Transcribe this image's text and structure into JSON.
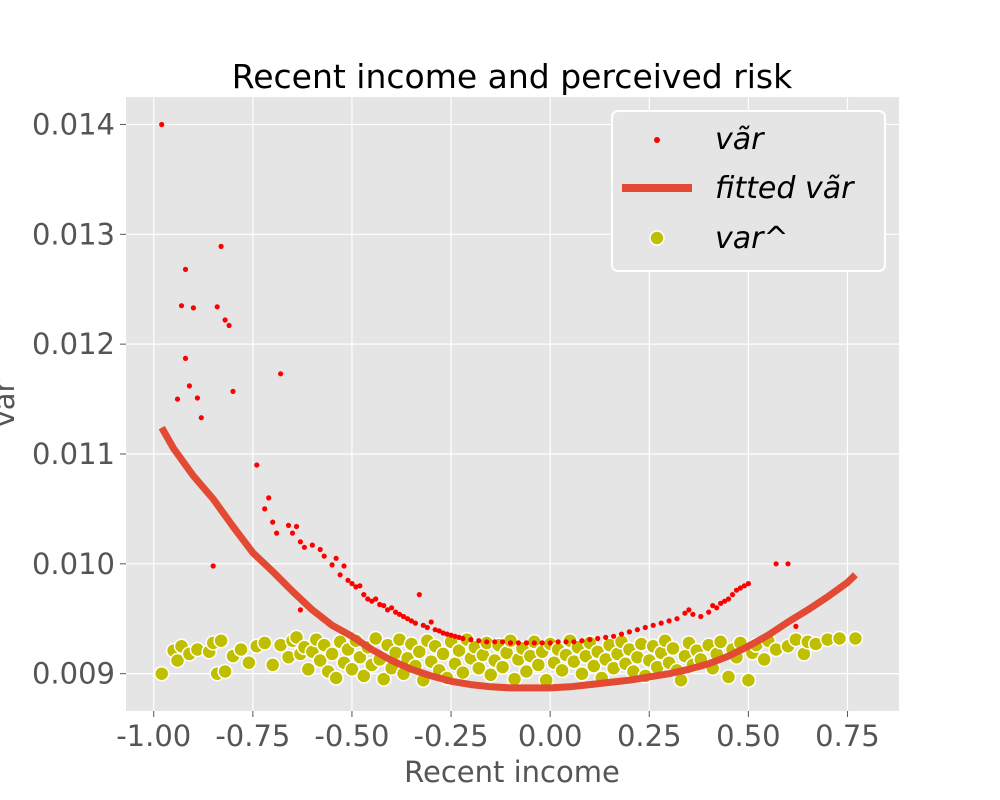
{
  "chart_data": {
    "type": "scatter",
    "title": "Recent income and perceived risk",
    "xlabel": "Recent income",
    "ylabel": "var",
    "xlim": [
      -1.07,
      0.88
    ],
    "ylim": [
      0.00866,
      0.01425
    ],
    "x_ticks": [
      -1.0,
      -0.75,
      -0.5,
      -0.25,
      0.0,
      0.25,
      0.5,
      0.75
    ],
    "x_tick_labels": [
      "-1.00",
      "-0.75",
      "-0.50",
      "-0.25",
      "0.00",
      "0.25",
      "0.50",
      "0.75"
    ],
    "y_ticks": [
      0.009,
      0.01,
      0.011,
      0.012,
      0.013,
      0.014
    ],
    "y_tick_labels": [
      "0.009",
      "0.010",
      "0.011",
      "0.012",
      "0.013",
      "0.014"
    ],
    "grid": true,
    "style": "ggplot",
    "legend_position": "top-right",
    "legend": {
      "entries": [
        {
          "label": "vãr",
          "kind": "marker-small",
          "color": "#ff0000"
        },
        {
          "label": "fitted vãr",
          "kind": "line",
          "color": "#e24a33"
        },
        {
          "label": "var^",
          "kind": "marker-large",
          "color": "#bfbf00"
        }
      ]
    },
    "series": [
      {
        "name": "vãr",
        "kind": "scatter-small",
        "color": "#ff0000",
        "points": [
          [
            -0.98,
            0.014
          ],
          [
            -0.94,
            0.0115
          ],
          [
            -0.93,
            0.01235
          ],
          [
            -0.92,
            0.01268
          ],
          [
            -0.92,
            0.01187
          ],
          [
            -0.91,
            0.01162
          ],
          [
            -0.9,
            0.01233
          ],
          [
            -0.89,
            0.01151
          ],
          [
            -0.88,
            0.01133
          ],
          [
            -0.85,
            0.00998
          ],
          [
            -0.84,
            0.01234
          ],
          [
            -0.83,
            0.01289
          ],
          [
            -0.82,
            0.01222
          ],
          [
            -0.81,
            0.01217
          ],
          [
            -0.8,
            0.01157
          ],
          [
            -0.74,
            0.0109
          ],
          [
            -0.72,
            0.0105
          ],
          [
            -0.71,
            0.0106
          ],
          [
            -0.7,
            0.01038
          ],
          [
            -0.69,
            0.01028
          ],
          [
            -0.68,
            0.01173
          ],
          [
            -0.66,
            0.01035
          ],
          [
            -0.65,
            0.01028
          ],
          [
            -0.64,
            0.01034
          ],
          [
            -0.63,
            0.0102
          ],
          [
            -0.62,
            0.01015
          ],
          [
            -0.6,
            0.01017
          ],
          [
            -0.58,
            0.01013
          ],
          [
            -0.57,
            0.01007
          ],
          [
            -0.55,
            0.00999
          ],
          [
            -0.54,
            0.01005
          ],
          [
            -0.53,
            0.0099
          ],
          [
            -0.52,
            0.00998
          ],
          [
            -0.51,
            0.00985
          ],
          [
            -0.5,
            0.00982
          ],
          [
            -0.49,
            0.00979
          ],
          [
            -0.48,
            0.0098
          ],
          [
            -0.47,
            0.00972
          ],
          [
            -0.46,
            0.00968
          ],
          [
            -0.45,
            0.00966
          ],
          [
            -0.44,
            0.00968
          ],
          [
            -0.43,
            0.00963
          ],
          [
            -0.42,
            0.00962
          ],
          [
            -0.41,
            0.00958
          ],
          [
            -0.4,
            0.0096
          ],
          [
            -0.39,
            0.00956
          ],
          [
            -0.38,
            0.00954
          ],
          [
            -0.37,
            0.00952
          ],
          [
            -0.36,
            0.0095
          ],
          [
            -0.35,
            0.00948
          ],
          [
            -0.34,
            0.00946
          ],
          [
            -0.33,
            0.00972
          ],
          [
            -0.32,
            0.00944
          ],
          [
            -0.31,
            0.00942
          ],
          [
            -0.3,
            0.00947
          ],
          [
            -0.29,
            0.0094
          ],
          [
            -0.28,
            0.00939
          ],
          [
            -0.27,
            0.00937
          ],
          [
            -0.26,
            0.00936
          ],
          [
            -0.25,
            0.00935
          ],
          [
            -0.24,
            0.00934
          ],
          [
            -0.23,
            0.00933
          ],
          [
            -0.22,
            0.00932
          ],
          [
            -0.2,
            0.00931
          ],
          [
            -0.18,
            0.0093
          ],
          [
            -0.16,
            0.00929
          ],
          [
            -0.14,
            0.00929
          ],
          [
            -0.12,
            0.00929
          ],
          [
            -0.1,
            0.00928
          ],
          [
            -0.08,
            0.00928
          ],
          [
            -0.06,
            0.00928
          ],
          [
            -0.04,
            0.00928
          ],
          [
            -0.02,
            0.00928
          ],
          [
            0.0,
            0.00928
          ],
          [
            0.02,
            0.00929
          ],
          [
            0.04,
            0.00929
          ],
          [
            0.06,
            0.00929
          ],
          [
            0.08,
            0.0093
          ],
          [
            0.1,
            0.00931
          ],
          [
            0.12,
            0.00932
          ],
          [
            0.14,
            0.00933
          ],
          [
            0.16,
            0.00934
          ],
          [
            0.18,
            0.00936
          ],
          [
            0.2,
            0.00938
          ],
          [
            0.22,
            0.0094
          ],
          [
            0.24,
            0.00942
          ],
          [
            0.26,
            0.00944
          ],
          [
            0.28,
            0.00946
          ],
          [
            0.3,
            0.00948
          ],
          [
            0.32,
            0.0095
          ],
          [
            0.34,
            0.00955
          ],
          [
            0.35,
            0.00958
          ],
          [
            0.36,
            0.00954
          ],
          [
            0.38,
            0.00952
          ],
          [
            0.4,
            0.00956
          ],
          [
            0.41,
            0.00962
          ],
          [
            0.42,
            0.0096
          ],
          [
            0.43,
            0.00964
          ],
          [
            0.44,
            0.00966
          ],
          [
            0.45,
            0.00968
          ],
          [
            0.46,
            0.00972
          ],
          [
            0.47,
            0.00976
          ],
          [
            0.48,
            0.00978
          ],
          [
            0.49,
            0.0098
          ],
          [
            0.5,
            0.00982
          ],
          [
            0.57,
            0.01
          ],
          [
            0.6,
            0.01
          ],
          [
            0.62,
            0.00943
          ],
          [
            -0.63,
            0.00958
          ]
        ]
      },
      {
        "name": "fitted vãr",
        "kind": "line",
        "color": "#e24a33",
        "points": [
          [
            -0.98,
            0.01124
          ],
          [
            -0.95,
            0.01105
          ],
          [
            -0.9,
            0.0108
          ],
          [
            -0.85,
            0.01059
          ],
          [
            -0.8,
            0.01034
          ],
          [
            -0.75,
            0.0101
          ],
          [
            -0.7,
            0.00993
          ],
          [
            -0.65,
            0.00975
          ],
          [
            -0.6,
            0.00958
          ],
          [
            -0.55,
            0.00944
          ],
          [
            -0.5,
            0.00934
          ],
          [
            -0.45,
            0.00922
          ],
          [
            -0.4,
            0.00912
          ],
          [
            -0.35,
            0.00904
          ],
          [
            -0.3,
            0.00898
          ],
          [
            -0.25,
            0.00893
          ],
          [
            -0.2,
            0.0089
          ],
          [
            -0.15,
            0.00888
          ],
          [
            -0.1,
            0.00887
          ],
          [
            -0.05,
            0.00887
          ],
          [
            0.0,
            0.00887
          ],
          [
            0.05,
            0.00888
          ],
          [
            0.1,
            0.0089
          ],
          [
            0.15,
            0.00892
          ],
          [
            0.2,
            0.00894
          ],
          [
            0.25,
            0.00897
          ],
          [
            0.3,
            0.009
          ],
          [
            0.35,
            0.00904
          ],
          [
            0.4,
            0.00909
          ],
          [
            0.45,
            0.00916
          ],
          [
            0.5,
            0.00925
          ],
          [
            0.55,
            0.00935
          ],
          [
            0.6,
            0.00947
          ],
          [
            0.65,
            0.00958
          ],
          [
            0.7,
            0.0097
          ],
          [
            0.75,
            0.00983
          ],
          [
            0.77,
            0.0099
          ]
        ]
      },
      {
        "name": "var^",
        "kind": "scatter-large",
        "color": "#bfbf00",
        "points": [
          [
            -0.98,
            0.009
          ],
          [
            -0.95,
            0.00921
          ],
          [
            -0.94,
            0.00912
          ],
          [
            -0.93,
            0.00925
          ],
          [
            -0.91,
            0.00918
          ],
          [
            -0.89,
            0.00922
          ],
          [
            -0.86,
            0.0092
          ],
          [
            -0.85,
            0.00928
          ],
          [
            -0.84,
            0.009
          ],
          [
            -0.83,
            0.0093
          ],
          [
            -0.82,
            0.00902
          ],
          [
            -0.8,
            0.00916
          ],
          [
            -0.78,
            0.00922
          ],
          [
            -0.76,
            0.0091
          ],
          [
            -0.74,
            0.00925
          ],
          [
            -0.72,
            0.00928
          ],
          [
            -0.7,
            0.00908
          ],
          [
            -0.68,
            0.00926
          ],
          [
            -0.66,
            0.00915
          ],
          [
            -0.65,
            0.0093
          ],
          [
            -0.64,
            0.00933
          ],
          [
            -0.63,
            0.00918
          ],
          [
            -0.62,
            0.00924
          ],
          [
            -0.61,
            0.00904
          ],
          [
            -0.6,
            0.0092
          ],
          [
            -0.59,
            0.00931
          ],
          [
            -0.58,
            0.00912
          ],
          [
            -0.57,
            0.00926
          ],
          [
            -0.56,
            0.00902
          ],
          [
            -0.55,
            0.00918
          ],
          [
            -0.54,
            0.00896
          ],
          [
            -0.53,
            0.00929
          ],
          [
            -0.52,
            0.0091
          ],
          [
            -0.51,
            0.00922
          ],
          [
            -0.5,
            0.00904
          ],
          [
            -0.49,
            0.0093
          ],
          [
            -0.48,
            0.00915
          ],
          [
            -0.47,
            0.00898
          ],
          [
            -0.46,
            0.00924
          ],
          [
            -0.45,
            0.00908
          ],
          [
            -0.44,
            0.00932
          ],
          [
            -0.43,
            0.00913
          ],
          [
            -0.42,
            0.00895
          ],
          [
            -0.41,
            0.00926
          ],
          [
            -0.4,
            0.00905
          ],
          [
            -0.39,
            0.00919
          ],
          [
            -0.38,
            0.00931
          ],
          [
            -0.37,
            0.009
          ],
          [
            -0.36,
            0.00914
          ],
          [
            -0.35,
            0.00927
          ],
          [
            -0.34,
            0.00907
          ],
          [
            -0.33,
            0.0092
          ],
          [
            -0.32,
            0.00894
          ],
          [
            -0.31,
            0.0093
          ],
          [
            -0.3,
            0.00911
          ],
          [
            -0.29,
            0.00925
          ],
          [
            -0.28,
            0.00903
          ],
          [
            -0.27,
            0.00918
          ],
          [
            -0.26,
            0.00896
          ],
          [
            -0.25,
            0.00929
          ],
          [
            -0.24,
            0.00909
          ],
          [
            -0.23,
            0.00921
          ],
          [
            -0.22,
            0.00901
          ],
          [
            -0.21,
            0.00931
          ],
          [
            -0.2,
            0.00914
          ],
          [
            -0.19,
            0.00924
          ],
          [
            -0.18,
            0.00905
          ],
          [
            -0.17,
            0.00917
          ],
          [
            -0.16,
            0.00928
          ],
          [
            -0.15,
            0.00899
          ],
          [
            -0.14,
            0.00912
          ],
          [
            -0.13,
            0.00926
          ],
          [
            -0.12,
            0.00906
          ],
          [
            -0.11,
            0.00919
          ],
          [
            -0.1,
            0.0093
          ],
          [
            -0.09,
            0.00895
          ],
          [
            -0.08,
            0.00913
          ],
          [
            -0.07,
            0.00923
          ],
          [
            -0.06,
            0.00902
          ],
          [
            -0.05,
            0.00916
          ],
          [
            -0.04,
            0.00929
          ],
          [
            -0.03,
            0.00908
          ],
          [
            -0.02,
            0.0092
          ],
          [
            -0.01,
            0.00894
          ],
          [
            0.0,
            0.00927
          ],
          [
            0.01,
            0.0091
          ],
          [
            0.02,
            0.00922
          ],
          [
            0.03,
            0.00903
          ],
          [
            0.04,
            0.00917
          ],
          [
            0.05,
            0.0093
          ],
          [
            0.06,
            0.00911
          ],
          [
            0.07,
            0.00924
          ],
          [
            0.08,
            0.009
          ],
          [
            0.09,
            0.00916
          ],
          [
            0.1,
            0.00928
          ],
          [
            0.11,
            0.00907
          ],
          [
            0.12,
            0.0092
          ],
          [
            0.13,
            0.00896
          ],
          [
            0.14,
            0.00913
          ],
          [
            0.15,
            0.00926
          ],
          [
            0.16,
            0.00905
          ],
          [
            0.17,
            0.00918
          ],
          [
            0.18,
            0.00929
          ],
          [
            0.19,
            0.00909
          ],
          [
            0.2,
            0.00922
          ],
          [
            0.21,
            0.00902
          ],
          [
            0.22,
            0.00915
          ],
          [
            0.23,
            0.00927
          ],
          [
            0.24,
            0.00898
          ],
          [
            0.25,
            0.00912
          ],
          [
            0.26,
            0.00925
          ],
          [
            0.27,
            0.00906
          ],
          [
            0.28,
            0.00919
          ],
          [
            0.29,
            0.0093
          ],
          [
            0.3,
            0.0091
          ],
          [
            0.31,
            0.00923
          ],
          [
            0.32,
            0.00903
          ],
          [
            0.33,
            0.00894
          ],
          [
            0.34,
            0.00916
          ],
          [
            0.35,
            0.00928
          ],
          [
            0.36,
            0.00908
          ],
          [
            0.37,
            0.00921
          ],
          [
            0.38,
            0.00913
          ],
          [
            0.4,
            0.00926
          ],
          [
            0.41,
            0.00905
          ],
          [
            0.42,
            0.00918
          ],
          [
            0.43,
            0.00929
          ],
          [
            0.45,
            0.00897
          ],
          [
            0.46,
            0.00922
          ],
          [
            0.47,
            0.00915
          ],
          [
            0.48,
            0.00928
          ],
          [
            0.5,
            0.00894
          ],
          [
            0.51,
            0.00919
          ],
          [
            0.52,
            0.00926
          ],
          [
            0.54,
            0.00913
          ],
          [
            0.55,
            0.0093
          ],
          [
            0.57,
            0.00922
          ],
          [
            0.6,
            0.00925
          ],
          [
            0.62,
            0.00931
          ],
          [
            0.64,
            0.00918
          ],
          [
            0.65,
            0.00929
          ],
          [
            0.67,
            0.00927
          ],
          [
            0.7,
            0.00931
          ],
          [
            0.73,
            0.00932
          ],
          [
            0.77,
            0.00932
          ]
        ]
      }
    ]
  }
}
